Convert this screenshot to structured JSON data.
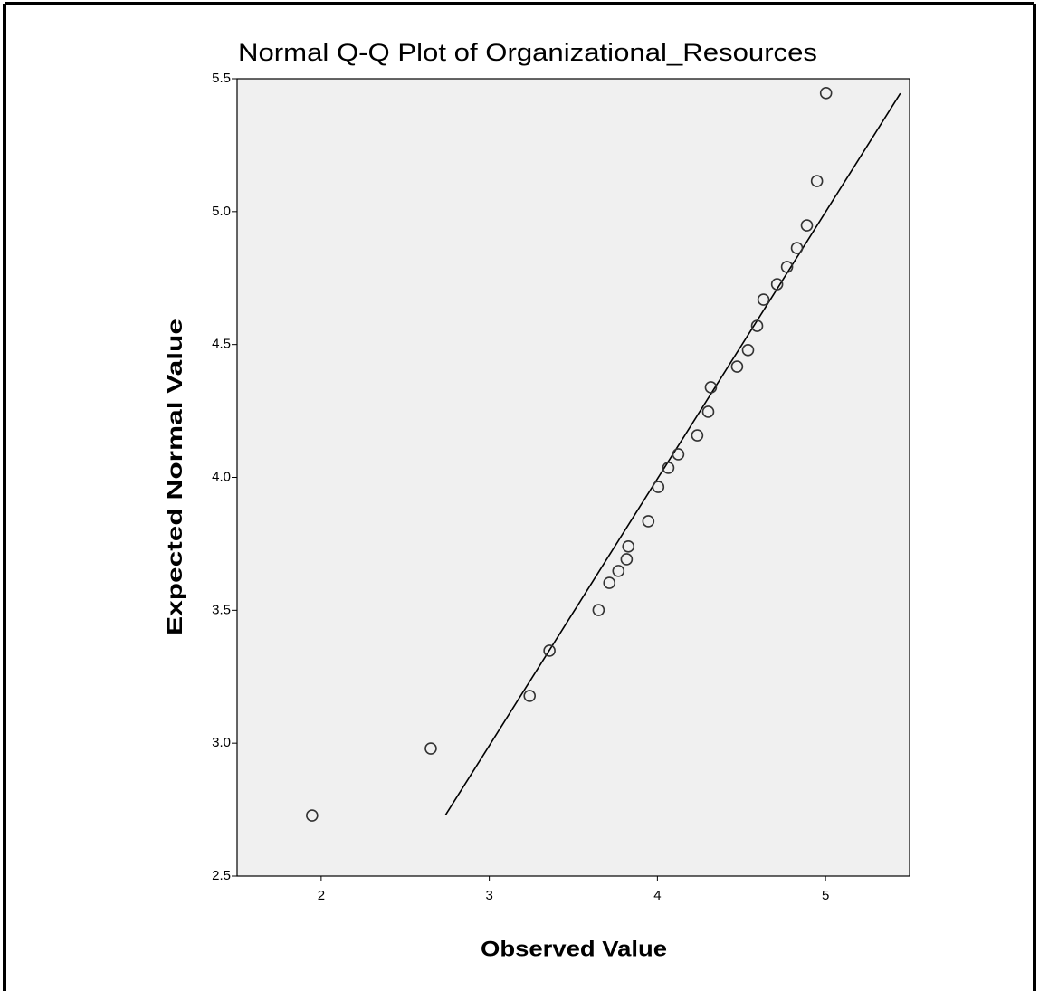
{
  "chart_data": {
    "type": "scatter",
    "title": "Normal Q-Q Plot of Organizational_Resources",
    "x_label": "Observed Value",
    "y_label": "Expected Normal Value",
    "x": [
      1.946,
      2.652,
      3.24,
      3.358,
      3.65,
      3.714,
      3.768,
      3.817,
      3.827,
      3.946,
      4.005,
      4.065,
      4.124,
      4.237,
      4.302,
      4.318,
      4.474,
      4.539,
      4.593,
      4.631,
      4.712,
      4.771,
      4.83,
      4.889,
      4.949,
      5.003
    ],
    "values": [
      2.728,
      2.98,
      3.178,
      3.348,
      3.501,
      3.603,
      3.648,
      3.692,
      3.74,
      3.835,
      3.964,
      4.036,
      4.087,
      4.158,
      4.247,
      4.339,
      4.417,
      4.479,
      4.57,
      4.669,
      4.727,
      4.792,
      4.863,
      4.948,
      5.115,
      5.446
    ],
    "color": "#333333",
    "reference_line": {
      "x": [
        2.74,
        5.445
      ],
      "y": [
        2.73,
        5.445
      ],
      "color": "#000000"
    },
    "xlim": [
      1.5,
      5.5
    ],
    "ylim": [
      2.5,
      5.5
    ],
    "xticks": [
      2,
      3,
      4,
      5
    ],
    "yticks": [
      2.5,
      {
        "value": 3,
        "label": "3.0"
      },
      3.5,
      {
        "value": 4,
        "label": "4.0"
      },
      4.5,
      {
        "value": 5,
        "label": "5.0"
      },
      5.5
    ],
    "background": "#f0f0f0"
  }
}
